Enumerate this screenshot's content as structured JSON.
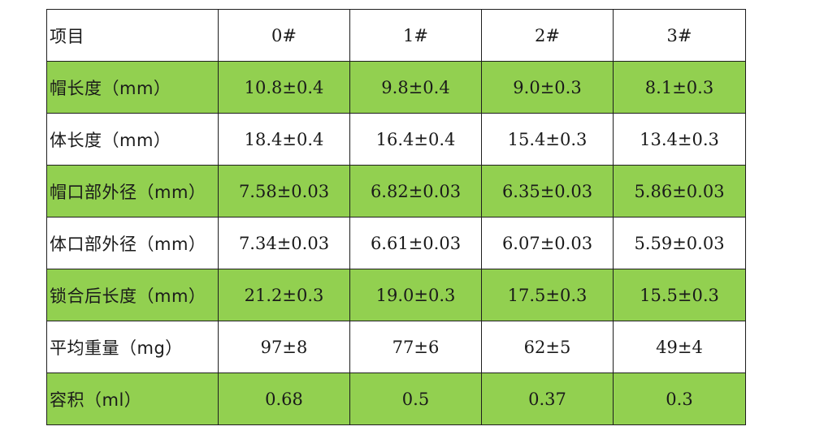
{
  "table": {
    "header": [
      "项目",
      "0#",
      "1#",
      "2#",
      "3#"
    ],
    "rows": [
      {
        "label": "帽长度（mm）",
        "values": [
          "10.8±0.4",
          "9.8±0.4",
          "9.0±0.3",
          "8.1±0.3"
        ],
        "highlight_color": "#92d050"
      },
      {
        "label": "体长度（mm）",
        "values": [
          "18.4±0.4",
          "16.4±0.4",
          "15.4±0.3",
          "13.4±0.3"
        ]
      },
      {
        "label": "帽口部外径（mm）",
        "values": [
          "7.58±0.03",
          "6.82±0.03",
          "6.35±0.03",
          "5.86±0.03"
        ],
        "highlight_color": "#92d050"
      },
      {
        "label": "体口部外径（mm）",
        "values": [
          "7.34±0.03",
          "6.61±0.03",
          "6.07±0.03",
          "5.59±0.03"
        ]
      },
      {
        "label": "锁合后长度（mm）",
        "values": [
          "21.2±0.3",
          "19.0±0.3",
          "17.5±0.3",
          "15.5±0.3"
        ],
        "highlight_color": "#92d050"
      },
      {
        "label": "平均重量（mg）",
        "values": [
          "97±8",
          "77±6",
          "62±5",
          "49±4"
        ]
      },
      {
        "label": "容积（ml）",
        "values": [
          "0.68",
          "0.5",
          "0.37",
          "0.3"
        ],
        "highlight_color": "#92d050"
      }
    ]
  }
}
